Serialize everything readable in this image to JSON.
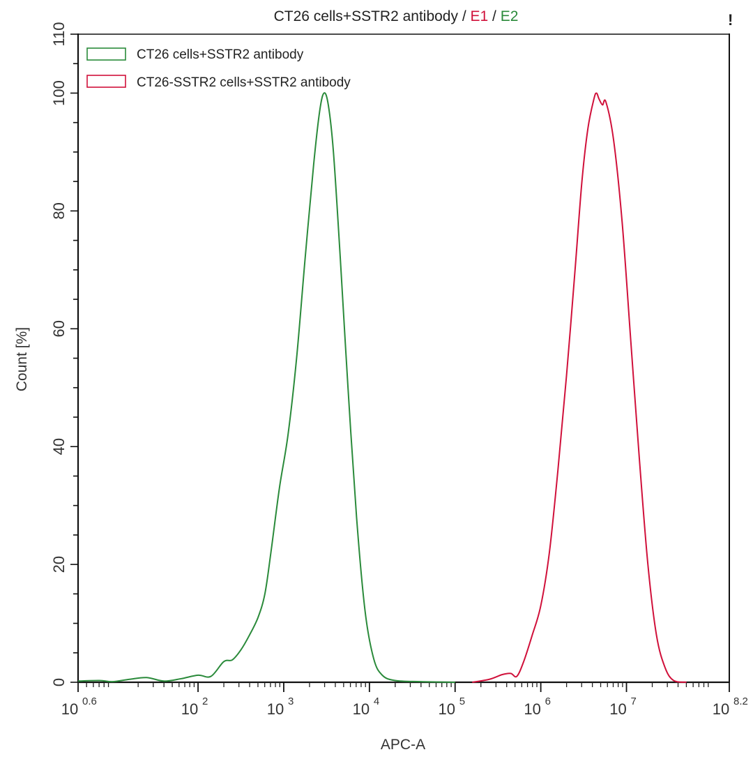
{
  "chart_data": {
    "type": "line",
    "title": "CT26 cells+SSTR2 antibody / E1 / E2",
    "title_parts": [
      {
        "text": "CT26 cells+SSTR2 antibody / ",
        "color": "#222222"
      },
      {
        "text": "E1",
        "color": "#d0103a"
      },
      {
        "text": " / ",
        "color": "#222222"
      },
      {
        "text": "E2",
        "color": "#2a8a3a"
      }
    ],
    "xlabel": "APC-A",
    "ylabel": "Count [%]",
    "x_scale": "log10",
    "xlim_log10": [
      0.6,
      8.2
    ],
    "ylim": [
      0,
      110
    ],
    "grid": false,
    "legend_position": "upper-left",
    "x_ticks": [
      {
        "base": "10",
        "exp": "0.6",
        "log": 0.6
      },
      {
        "base": "10",
        "exp": "2",
        "log": 2
      },
      {
        "base": "10",
        "exp": "3",
        "log": 3
      },
      {
        "base": "10",
        "exp": "4",
        "log": 4
      },
      {
        "base": "10",
        "exp": "5",
        "log": 5
      },
      {
        "base": "10",
        "exp": "6",
        "log": 6
      },
      {
        "base": "10",
        "exp": "7",
        "log": 7
      },
      {
        "base": "10",
        "exp": "8.2",
        "log": 8.2
      }
    ],
    "y_ticks": [
      0,
      20,
      40,
      60,
      80,
      100,
      110
    ],
    "series": [
      {
        "name": "CT26 cells+SSTR2 antibody",
        "color": "#2a8a3a",
        "x_log10": [
          0.6,
          0.85,
          1.0,
          1.2,
          1.4,
          1.6,
          1.8,
          2.0,
          2.15,
          2.3,
          2.4,
          2.5,
          2.6,
          2.7,
          2.78,
          2.85,
          2.95,
          3.05,
          3.15,
          3.25,
          3.35,
          3.42,
          3.47,
          3.52,
          3.58,
          3.66,
          3.75,
          3.85,
          3.95,
          4.05,
          4.15,
          4.3,
          4.6,
          5.0
        ],
        "values": [
          0.2,
          0.3,
          0.1,
          0.5,
          0.8,
          0.2,
          0.6,
          1.2,
          1.0,
          3.5,
          3.8,
          5.5,
          8.0,
          11.0,
          15.0,
          22.0,
          33.0,
          42.0,
          55.0,
          72.0,
          88.0,
          97.0,
          100.0,
          98.0,
          90.0,
          72.0,
          50.0,
          28.0,
          12.0,
          4.0,
          1.2,
          0.3,
          0.1,
          0.0
        ]
      },
      {
        "name": "CT26-SSTR2 cells+SSTR2 antibody",
        "color": "#d0103a",
        "x_log10": [
          5.2,
          5.4,
          5.55,
          5.65,
          5.72,
          5.8,
          5.9,
          6.0,
          6.1,
          6.2,
          6.3,
          6.4,
          6.48,
          6.55,
          6.62,
          6.65,
          6.68,
          6.72,
          6.76,
          6.85,
          6.95,
          7.05,
          7.15,
          7.25,
          7.35,
          7.45,
          7.55,
          7.7
        ],
        "values": [
          0.0,
          0.5,
          1.3,
          1.5,
          1.0,
          3.5,
          8.0,
          13.0,
          22.0,
          36.0,
          52.0,
          70.0,
          85.0,
          94.0,
          99.0,
          100.0,
          99.0,
          98.0,
          98.5,
          92.0,
          78.0,
          58.0,
          38.0,
          20.0,
          8.0,
          2.5,
          0.3,
          0.0
        ]
      }
    ]
  },
  "legend": {
    "items": [
      {
        "label": "CT26 cells+SSTR2 antibody",
        "color": "#2a8a3a"
      },
      {
        "label": "CT26-SSTR2 cells+SSTR2 antibody",
        "color": "#d0103a"
      }
    ]
  },
  "alert_mark": "!"
}
